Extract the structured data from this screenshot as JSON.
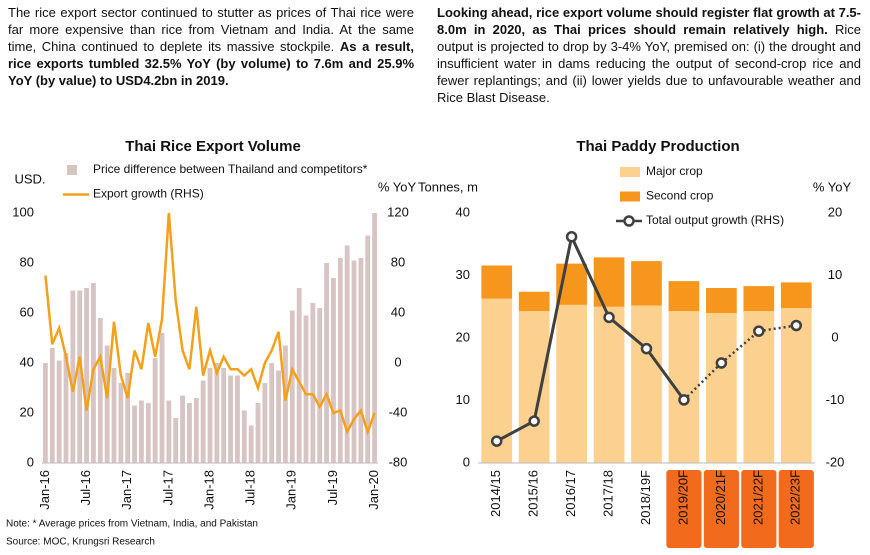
{
  "text": {
    "left": {
      "normal": "The rice export sector continued to stutter as prices of Thai rice were far more expensive than rice from Vietnam and India. At the same time, China continued to deplete its massive stockpile.",
      "bold": "As a result, rice exports tumbled 32.5% YoY (by volume) to 7.6m and 25.9% YoY (by value) to USD4.2bn in 2019."
    },
    "right": {
      "bold": "Looking ahead, rice export volume should register flat growth at 7.5-8.0m in 2020, as Thai prices should remain relatively high.",
      "normal": "Rice output is projected to drop by 3-4% YoY, premised on: (i) the drought and insufficient water in dams reducing the output of second-crop rice and fewer replantings; and (ii) lower yields due to unfavourable weather and Rice Blast Disease."
    },
    "note": "Note: * Average prices from Vietnam, India, and Pakistan",
    "source": "Source: MOC, Krungsri Research"
  },
  "chart_data": [
    {
      "type": "bar",
      "title": "Thai Rice Export Volume",
      "y_label": "USD.",
      "y2_label": "% YoY",
      "categories": [
        "Jan-16",
        null,
        null,
        null,
        null,
        null,
        "Jul-16",
        null,
        null,
        null,
        null,
        null,
        "Jan-17",
        null,
        null,
        null,
        null,
        null,
        "Jul-17",
        null,
        null,
        null,
        null,
        null,
        "Jan-18",
        null,
        null,
        null,
        null,
        null,
        "Jul-18",
        null,
        null,
        null,
        null,
        null,
        "Jan-19",
        null,
        null,
        null,
        null,
        null,
        "Jul-19",
        null,
        null,
        null,
        null,
        null,
        "Jan-20"
      ],
      "series": [
        {
          "name": "Price difference between Thailand and competitors*",
          "type": "bar",
          "color": "#d9c4c4",
          "values": [
            40,
            46,
            41,
            44,
            69,
            69,
            70,
            72,
            58,
            47,
            38,
            32,
            36,
            23,
            25,
            24,
            42,
            52,
            25,
            18,
            27,
            24,
            26,
            33,
            38,
            40,
            38,
            35,
            35,
            21,
            15,
            24,
            32,
            40,
            37,
            47,
            61,
            70,
            59,
            64,
            62,
            80,
            74,
            82,
            87,
            81,
            82,
            91,
            100
          ]
        },
        {
          "name": "Export growth (RHS)",
          "type": "line",
          "axis": "y2",
          "color": "#f5a01a",
          "values": [
            70,
            15,
            28,
            5,
            -23,
            5,
            -38,
            -5,
            5,
            -28,
            33,
            -10,
            -28,
            10,
            -5,
            32,
            5,
            35,
            120,
            50,
            10,
            -5,
            45,
            -10,
            10,
            -8,
            5,
            -5,
            -5,
            -10,
            -5,
            -20,
            0,
            10,
            25,
            -30,
            -5,
            -15,
            -25,
            -25,
            -35,
            -25,
            -40,
            -38,
            -55,
            -45,
            -38,
            -55,
            -40
          ]
        }
      ],
      "ylim": [
        0,
        100
      ],
      "yticks": [
        0,
        20,
        40,
        60,
        80,
        100
      ],
      "y2lim": [
        -80,
        120
      ],
      "y2ticks": [
        -80,
        -40,
        0,
        40,
        80,
        120
      ]
    },
    {
      "type": "stacked_bar",
      "title": "Thai Paddy Production",
      "y_label": "Tonnes, m",
      "y2_label": "% YoY",
      "categories": [
        "2014/15",
        "2015/16",
        "2016/17",
        "2017/18",
        "2018/19F",
        "2019/20F",
        "2020/21F",
        "2021/22F",
        "2022/23F"
      ],
      "highlight_from": 5,
      "highlight_color": "#f26a1b",
      "dotted_from": 5,
      "series": [
        {
          "name": "Major crop",
          "type": "bar",
          "color": "#fcd18f",
          "values": [
            26.3,
            24.3,
            25.3,
            25.0,
            25.2,
            24.3,
            24.0,
            24.3,
            24.8
          ]
        },
        {
          "name": "Second crop",
          "type": "bar",
          "color": "#f7961d",
          "values": [
            5.3,
            3.1,
            6.6,
            7.9,
            7.1,
            4.8,
            4.0,
            4.0,
            4.1
          ]
        },
        {
          "name": "Total output growth (RHS)",
          "type": "line",
          "axis": "y2",
          "color": "#404040",
          "values": [
            -16.5,
            -13.3,
            16.2,
            3.3,
            -1.7,
            -9.9,
            -4.0,
            1.1,
            2.0
          ]
        }
      ],
      "ylim": [
        0,
        40
      ],
      "yticks": [
        0,
        10,
        20,
        30,
        40
      ],
      "y2lim": [
        -20,
        20
      ],
      "y2ticks": [
        -20,
        -10,
        0,
        10,
        20
      ]
    }
  ]
}
